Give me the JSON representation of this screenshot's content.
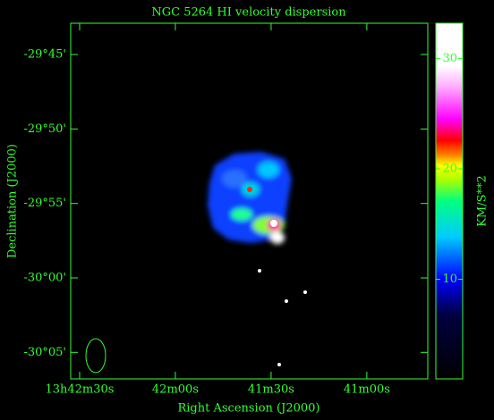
{
  "chart_data": {
    "type": "image",
    "title": "NGC 5264   HI velocity dispersion",
    "x_label": "Right Ascension (J2000)",
    "y_label": "Declination (J2000)",
    "colorbar_label": "KM/S**2",
    "xlim": [
      2552.8,
      2440.9
    ],
    "xticks": [
      {
        "value": 2550,
        "label": "13h42m30s"
      },
      {
        "value": 2520,
        "label": "42m00s"
      },
      {
        "value": 2490,
        "label": "41m30s"
      },
      {
        "value": 2460,
        "label": "41m00s"
      }
    ],
    "ylim": [
      -30.113,
      -29.715
    ],
    "yticks": [
      {
        "value": -29.75,
        "label": "-29°45'"
      },
      {
        "value": -29.8333,
        "label": "-29°50'"
      },
      {
        "value": -29.9167,
        "label": "-29°55'"
      },
      {
        "value": -30.0,
        "label": "-30°00'"
      },
      {
        "value": -30.0833,
        "label": "-30°05'"
      }
    ],
    "clim": [
      0.97,
      33.2
    ],
    "cticks": [
      10,
      20,
      30
    ]
  }
}
